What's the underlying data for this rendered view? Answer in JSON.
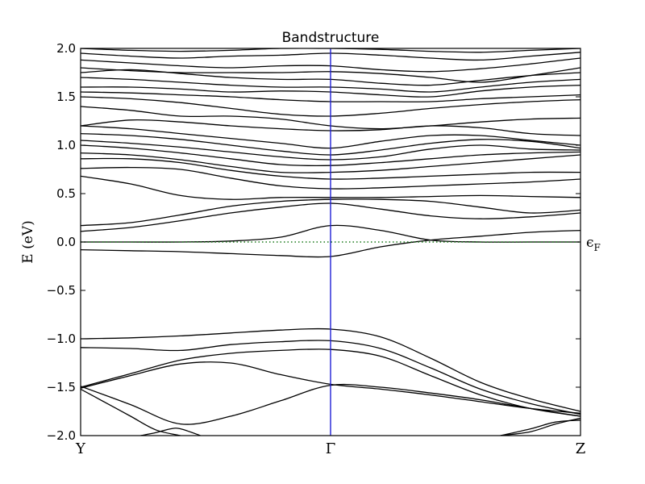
{
  "chart_data": {
    "type": "line",
    "title": "Bandstructure",
    "ylabel": "E (eV)",
    "xlabel": "",
    "ylim": [
      -2.0,
      2.0
    ],
    "yticks": [
      "2.0",
      "1.5",
      "1.0",
      "0.5",
      "0.0",
      "−0.5",
      "−1.0",
      "−1.5",
      "−2.0"
    ],
    "yticks_values": [
      2.0,
      1.5,
      1.0,
      0.5,
      0.0,
      -0.5,
      -1.0,
      -1.5,
      -2.0
    ],
    "xticks": [
      "Y",
      "Γ",
      "Z"
    ],
    "xticks_values": [
      0,
      0.5,
      1.0
    ],
    "xlim": [
      0,
      1.0
    ],
    "grid": false,
    "fermi_level": {
      "value": 0.0,
      "label": "ϵ",
      "label_subscript": "F",
      "style": "dotted",
      "color": "#1a7a1a"
    },
    "gamma_marker": {
      "x": 0.5,
      "color": "#1f1fd6"
    },
    "band_color": "#000000",
    "series": [
      {
        "x": [
          0,
          0.1,
          0.2,
          0.3,
          0.4,
          0.5,
          0.6,
          0.7,
          0.8,
          0.9,
          1.0
        ],
        "values": [
          -0.08,
          -0.09,
          -0.1,
          -0.12,
          -0.14,
          -0.15,
          -0.05,
          0.02,
          0.06,
          0.1,
          0.12
        ]
      },
      {
        "x": [
          0,
          0.1,
          0.2,
          0.3,
          0.4,
          0.5,
          0.6,
          0.7,
          0.8,
          0.9,
          1.0
        ],
        "values": [
          0.0,
          0.0,
          0.0,
          0.01,
          0.05,
          0.17,
          0.12,
          0.02,
          0.0,
          0.0,
          0.0
        ]
      },
      {
        "x": [
          0,
          0.1,
          0.2,
          0.3,
          0.4,
          0.5,
          0.6,
          0.7,
          0.8,
          0.9,
          1.0
        ],
        "values": [
          0.11,
          0.15,
          0.22,
          0.3,
          0.36,
          0.4,
          0.34,
          0.27,
          0.24,
          0.26,
          0.3
        ]
      },
      {
        "x": [
          0,
          0.1,
          0.2,
          0.3,
          0.4,
          0.5,
          0.6,
          0.7,
          0.8,
          0.9,
          1.0
        ],
        "values": [
          0.17,
          0.2,
          0.28,
          0.37,
          0.42,
          0.44,
          0.44,
          0.42,
          0.36,
          0.3,
          0.33
        ]
      },
      {
        "x": [
          0,
          0.1,
          0.2,
          0.3,
          0.4,
          0.5,
          0.6,
          0.7,
          0.8,
          0.9,
          1.0
        ],
        "values": [
          0.68,
          0.6,
          0.48,
          0.44,
          0.46,
          0.46,
          0.46,
          0.47,
          0.48,
          0.47,
          0.46
        ]
      },
      {
        "x": [
          0,
          0.1,
          0.2,
          0.3,
          0.4,
          0.5,
          0.6,
          0.7,
          0.8,
          0.9,
          1.0
        ],
        "values": [
          0.76,
          0.77,
          0.75,
          0.66,
          0.58,
          0.55,
          0.56,
          0.58,
          0.6,
          0.62,
          0.65
        ]
      },
      {
        "x": [
          0,
          0.1,
          0.2,
          0.3,
          0.4,
          0.5,
          0.6,
          0.7,
          0.8,
          0.9,
          1.0
        ],
        "values": [
          0.86,
          0.86,
          0.82,
          0.74,
          0.68,
          0.65,
          0.66,
          0.68,
          0.7,
          0.72,
          0.72
        ]
      },
      {
        "x": [
          0,
          0.1,
          0.2,
          0.3,
          0.4,
          0.5,
          0.6,
          0.7,
          0.8,
          0.9,
          1.0
        ],
        "values": [
          0.92,
          0.9,
          0.85,
          0.78,
          0.72,
          0.72,
          0.74,
          0.78,
          0.82,
          0.86,
          0.9
        ]
      },
      {
        "x": [
          0,
          0.1,
          0.2,
          0.3,
          0.4,
          0.5,
          0.6,
          0.7,
          0.8,
          0.9,
          1.0
        ],
        "values": [
          1.0,
          0.97,
          0.92,
          0.86,
          0.8,
          0.79,
          0.82,
          0.86,
          0.9,
          0.92,
          0.93
        ]
      },
      {
        "x": [
          0,
          0.1,
          0.2,
          0.3,
          0.4,
          0.5,
          0.6,
          0.7,
          0.8,
          0.9,
          1.0
        ],
        "values": [
          1.05,
          1.02,
          0.98,
          0.93,
          0.88,
          0.85,
          0.88,
          0.96,
          1.0,
          0.96,
          0.95
        ]
      },
      {
        "x": [
          0,
          0.1,
          0.2,
          0.3,
          0.4,
          0.5,
          0.6,
          0.7,
          0.8,
          0.9,
          1.0
        ],
        "values": [
          1.12,
          1.1,
          1.06,
          1.0,
          0.94,
          0.9,
          0.95,
          1.02,
          1.06,
          1.04,
          0.97
        ]
      },
      {
        "x": [
          0,
          0.1,
          0.2,
          0.3,
          0.4,
          0.5,
          0.6,
          0.7,
          0.8,
          0.9,
          1.0
        ],
        "values": [
          1.2,
          1.17,
          1.12,
          1.07,
          1.02,
          0.97,
          1.04,
          1.1,
          1.1,
          1.05,
          1.0
        ]
      },
      {
        "x": [
          0,
          0.1,
          0.2,
          0.3,
          0.4,
          0.5,
          0.6,
          0.7,
          0.8,
          0.9,
          1.0
        ],
        "values": [
          1.2,
          1.26,
          1.24,
          1.2,
          1.17,
          1.15,
          1.16,
          1.2,
          1.18,
          1.12,
          1.1
        ]
      },
      {
        "x": [
          0,
          0.1,
          0.2,
          0.3,
          0.4,
          0.5,
          0.6,
          0.7,
          0.8,
          0.9,
          1.0
        ],
        "values": [
          1.4,
          1.36,
          1.3,
          1.3,
          1.27,
          1.2,
          1.17,
          1.2,
          1.24,
          1.27,
          1.28
        ]
      },
      {
        "x": [
          0,
          0.1,
          0.2,
          0.3,
          0.4,
          0.5,
          0.6,
          0.7,
          0.8,
          0.9,
          1.0
        ],
        "values": [
          1.5,
          1.48,
          1.44,
          1.38,
          1.32,
          1.3,
          1.33,
          1.38,
          1.42,
          1.45,
          1.47
        ]
      },
      {
        "x": [
          0,
          0.1,
          0.2,
          0.3,
          0.4,
          0.5,
          0.6,
          0.7,
          0.8,
          0.9,
          1.0
        ],
        "values": [
          1.55,
          1.54,
          1.52,
          1.5,
          1.47,
          1.45,
          1.45,
          1.45,
          1.48,
          1.5,
          1.52
        ]
      },
      {
        "x": [
          0,
          0.1,
          0.2,
          0.3,
          0.4,
          0.5,
          0.6,
          0.7,
          0.8,
          0.9,
          1.0
        ],
        "values": [
          1.6,
          1.6,
          1.58,
          1.55,
          1.56,
          1.55,
          1.52,
          1.5,
          1.56,
          1.6,
          1.62
        ]
      },
      {
        "x": [
          0,
          0.1,
          0.2,
          0.3,
          0.4,
          0.5,
          0.6,
          0.7,
          0.8,
          0.9,
          1.0
        ],
        "values": [
          1.7,
          1.68,
          1.65,
          1.62,
          1.6,
          1.6,
          1.58,
          1.55,
          1.6,
          1.65,
          1.68
        ]
      },
      {
        "x": [
          0,
          0.1,
          0.2,
          0.3,
          0.4,
          0.5,
          0.6,
          0.7,
          0.8,
          0.9,
          1.0
        ],
        "values": [
          1.75,
          1.78,
          1.74,
          1.7,
          1.68,
          1.68,
          1.64,
          1.62,
          1.67,
          1.72,
          1.75
        ]
      },
      {
        "x": [
          0,
          0.1,
          0.2,
          0.3,
          0.4,
          0.5,
          0.6,
          0.7,
          0.8,
          0.9,
          1.0
        ],
        "values": [
          1.8,
          1.77,
          1.75,
          1.75,
          1.75,
          1.76,
          1.74,
          1.7,
          1.65,
          1.72,
          1.8
        ]
      },
      {
        "x": [
          0,
          0.1,
          0.2,
          0.3,
          0.4,
          0.5,
          0.6,
          0.7,
          0.8,
          0.9,
          1.0
        ],
        "values": [
          1.88,
          1.85,
          1.82,
          1.8,
          1.82,
          1.82,
          1.78,
          1.76,
          1.79,
          1.84,
          1.9
        ]
      },
      {
        "x": [
          0,
          0.1,
          0.2,
          0.3,
          0.4,
          0.5,
          0.6,
          0.7,
          0.8,
          0.9,
          1.0
        ],
        "values": [
          1.95,
          1.92,
          1.9,
          1.92,
          1.93,
          1.95,
          1.93,
          1.9,
          1.88,
          1.92,
          1.96
        ]
      },
      {
        "x": [
          0,
          0.1,
          0.2,
          0.3,
          0.4,
          0.5,
          0.6,
          0.7,
          0.8,
          0.9,
          1.0
        ],
        "values": [
          2.0,
          1.98,
          1.97,
          1.98,
          2.0,
          2.0,
          1.99,
          1.97,
          1.96,
          1.98,
          2.0
        ]
      },
      {
        "x": [
          0,
          0.1,
          0.2,
          0.3,
          0.4,
          0.5,
          0.6,
          0.7,
          0.8,
          0.9,
          1.0
        ],
        "values": [
          -1.0,
          -0.99,
          -0.97,
          -0.94,
          -0.91,
          -0.9,
          -0.98,
          -1.2,
          -1.45,
          -1.62,
          -1.75
        ]
      },
      {
        "x": [
          0,
          0.1,
          0.2,
          0.3,
          0.4,
          0.5,
          0.6,
          0.7,
          0.8,
          0.9,
          1.0
        ],
        "values": [
          -1.09,
          -1.1,
          -1.12,
          -1.06,
          -1.03,
          -1.02,
          -1.1,
          -1.3,
          -1.52,
          -1.67,
          -1.78
        ]
      },
      {
        "x": [
          0,
          0.1,
          0.2,
          0.3,
          0.4,
          0.5,
          0.6,
          0.7,
          0.8,
          0.9,
          1.0
        ],
        "values": [
          -1.5,
          -1.36,
          -1.22,
          -1.15,
          -1.12,
          -1.11,
          -1.18,
          -1.38,
          -1.58,
          -1.72,
          -1.8
        ]
      },
      {
        "x": [
          0,
          0.1,
          0.2,
          0.3,
          0.4,
          0.5,
          0.6,
          0.7,
          0.8,
          0.9,
          1.0
        ],
        "values": [
          -1.51,
          -1.38,
          -1.26,
          -1.25,
          -1.37,
          -1.47,
          -1.52,
          -1.58,
          -1.65,
          -1.72,
          -1.77
        ]
      },
      {
        "x": [
          0,
          0.1,
          0.2,
          0.3,
          0.4,
          0.5,
          0.6,
          0.7,
          0.8,
          0.9,
          1.0
        ],
        "values": [
          -1.49,
          -1.68,
          -1.88,
          -1.8,
          -1.64,
          -1.48,
          -1.5,
          -1.56,
          -1.63,
          -1.72,
          -1.8
        ]
      },
      {
        "x": [
          0,
          0.05,
          0.1,
          0.15,
          0.2
        ],
        "values": [
          -1.52,
          -1.66,
          -1.8,
          -1.94,
          -2.0
        ]
      },
      {
        "x": [
          0.12,
          0.15,
          0.18,
          0.2,
          0.24
        ],
        "values": [
          -2.0,
          -1.97,
          -1.93,
          -1.93,
          -2.0
        ]
      },
      {
        "x": [
          0.84,
          0.9,
          0.95,
          1.0
        ],
        "values": [
          -2.0,
          -1.96,
          -1.88,
          -1.82
        ]
      },
      {
        "x": [
          0.84,
          0.9,
          0.95,
          1.0
        ],
        "values": [
          -2.0,
          -1.93,
          -1.86,
          -1.84
        ]
      }
    ]
  }
}
